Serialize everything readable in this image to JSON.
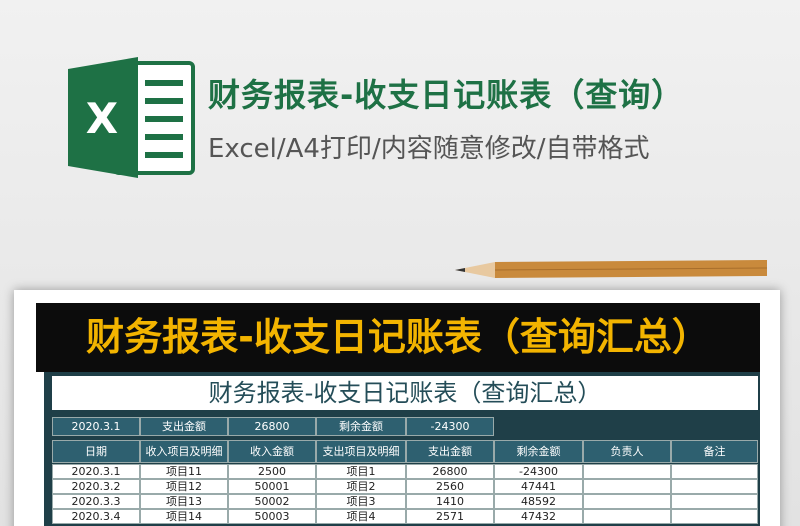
{
  "header": {
    "title": "财务报表-收支日记账表（查询）",
    "subtitle": "Excel/A4打印/内容随意修改/自带格式"
  },
  "banner": "财务报表-收支日记账表（查询汇总）",
  "sheet": {
    "title": "财务报表-收支日记账表（查询汇总）",
    "summary": [
      "2020.3.1",
      "支出金额",
      26800,
      "剩余金额",
      -24300
    ],
    "columns": [
      "日期",
      "收入项目及明细",
      "收入金额",
      "支出项目及明细",
      "支出金额",
      "剩余金额",
      "负责人",
      "备注"
    ],
    "rows": [
      [
        "2020.3.1",
        "项目11",
        2500,
        "项目1",
        26800,
        -24300
      ],
      [
        "2020.3.2",
        "项目12",
        50001,
        "项目2",
        2560,
        47441
      ],
      [
        "2020.3.3",
        "项目13",
        50002,
        "项目3",
        1410,
        48592
      ],
      [
        "2020.3.4",
        "项目14",
        50003,
        "项目4",
        2571,
        47432
      ]
    ]
  }
}
